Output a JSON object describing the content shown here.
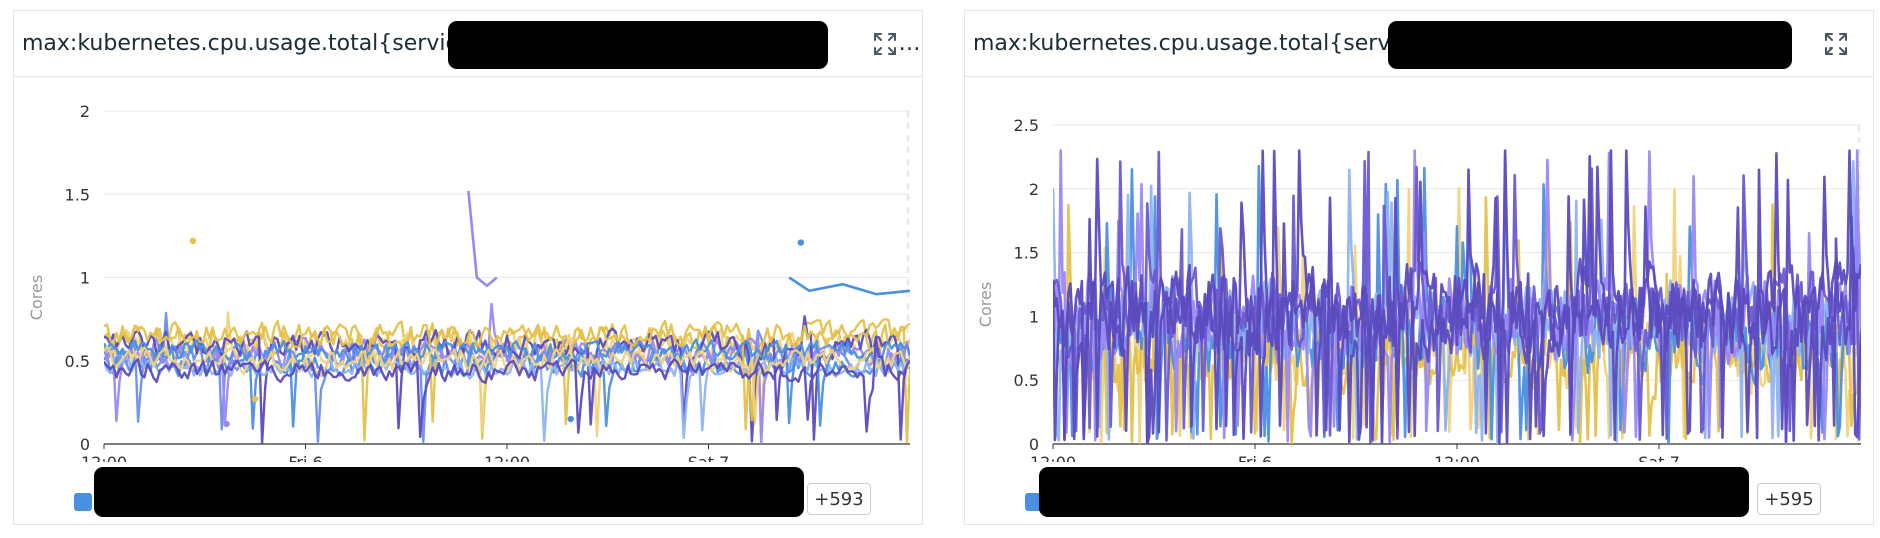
{
  "panels": [
    {
      "title": "max:kubernetes.cpu.usage.total{service:",
      "title_suffix": "…",
      "more_label": "+593",
      "legend_color": "#4a90e2"
    },
    {
      "title": "max:kubernetes.cpu.usage.total{service",
      "title_suffix": ".",
      "more_label": "+595",
      "legend_color": "#4a90e2"
    }
  ],
  "chart_data": [
    {
      "type": "line",
      "ylabel": "Cores",
      "ylim": [
        0,
        2
      ],
      "yticks": [
        "0",
        "0.5",
        "1",
        "1.5",
        "2"
      ],
      "yticks_values": [
        0,
        0.5,
        1,
        1.5,
        2
      ],
      "x_ticks": [
        "12:00",
        "Fri 6",
        "12:00",
        "Sat 7"
      ],
      "x_tick_hours": [
        0,
        12,
        24,
        36
      ],
      "x_range_hours": [
        0,
        48
      ],
      "series_count_visible": 11,
      "series": [
        {
          "color": "#e5c14a",
          "base": 0.62,
          "amp": 0.1
        },
        {
          "color": "#f2d27a",
          "base": 0.58,
          "amp": 0.09
        },
        {
          "color": "#4a90e2",
          "base": 0.48,
          "amp": 0.07
        },
        {
          "color": "#6b8ff0",
          "base": 0.52,
          "amp": 0.08
        },
        {
          "color": "#9b87f5",
          "base": 0.55,
          "amp": 0.08
        },
        {
          "color": "#5b4bbf",
          "base": 0.6,
          "amp": 0.08
        },
        {
          "color": "#8fb3f2",
          "base": 0.46,
          "amp": 0.06
        },
        {
          "color": "#e5c14a",
          "base": 0.66,
          "amp": 0.07
        },
        {
          "color": "#4a90e2",
          "base": 0.56,
          "amp": 0.06
        },
        {
          "color": "#f2d27a",
          "base": 0.5,
          "amp": 0.07
        },
        {
          "color": "#5b4bbf",
          "base": 0.44,
          "amp": 0.06
        }
      ],
      "segments": [
        {
          "color": "#4a90e2",
          "points": [
            [
              40.8,
              1.0
            ],
            [
              42,
              0.92
            ],
            [
              44,
              0.96
            ],
            [
              46,
              0.9
            ],
            [
              48,
              0.92
            ]
          ]
        },
        {
          "color": "#9b87f5",
          "points": [
            [
              21.7,
              1.52
            ],
            [
              22.2,
              1.0
            ],
            [
              22.8,
              0.95
            ],
            [
              23.4,
              1.0
            ]
          ]
        }
      ],
      "dots": [
        {
          "color": "#e5c14a",
          "x": 5.3,
          "y": 1.22
        },
        {
          "color": "#4a90e2",
          "x": 41.5,
          "y": 1.21
        },
        {
          "color": "#9b87f5",
          "x": 7.3,
          "y": 0.12
        },
        {
          "color": "#4a90e2",
          "x": 27.8,
          "y": 0.15
        },
        {
          "color": "#e5c14a",
          "x": 9.0,
          "y": 0.27
        }
      ]
    },
    {
      "type": "line",
      "ylabel": "Cores",
      "ylim": [
        0,
        2.5
      ],
      "yticks": [
        "0",
        "0.5",
        "1",
        "1.5",
        "2",
        "2.5"
      ],
      "yticks_values": [
        0,
        0.5,
        1,
        1.5,
        2,
        2.5
      ],
      "x_ticks": [
        "12:00",
        "Fri 6",
        "12:00",
        "Sat 7"
      ],
      "x_tick_hours": [
        0,
        12,
        24,
        36
      ],
      "x_range_hours": [
        0,
        48
      ],
      "series_count_visible": 8,
      "series": [
        {
          "color": "#f2d27a",
          "base": 0.75,
          "amp": 0.3
        },
        {
          "color": "#e5c14a",
          "base": 0.7,
          "amp": 0.28
        },
        {
          "color": "#4a90e2",
          "base": 0.85,
          "amp": 0.3
        },
        {
          "color": "#8fb3f2",
          "base": 0.95,
          "amp": 0.3
        },
        {
          "color": "#9b87f5",
          "base": 1.0,
          "amp": 0.32
        },
        {
          "color": "#6b5bd0",
          "base": 1.05,
          "amp": 0.3
        },
        {
          "color": "#5b4bbf",
          "base": 1.08,
          "amp": 0.32
        },
        {
          "color": "#5b4bbf",
          "base": 1.0,
          "amp": 0.3
        }
      ],
      "segments": [],
      "dots": []
    }
  ]
}
